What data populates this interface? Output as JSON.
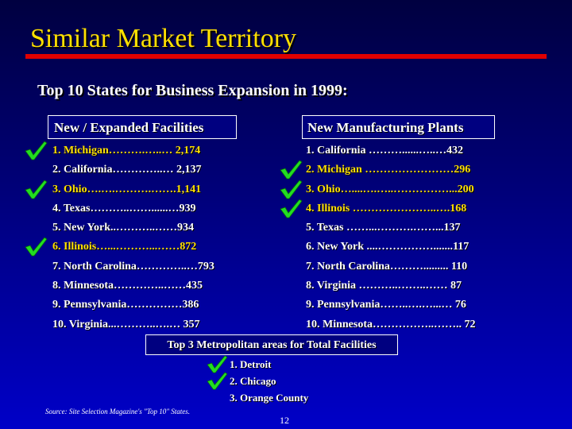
{
  "slide": {
    "title": "Similar Market Territory",
    "subtitle": "Top 10 States for Business Expansion in 1999:",
    "source": "Source: Site Selection Magazine's \"Top 10\" States.",
    "page_number": "12"
  },
  "left_list": {
    "header": "New / Expanded Facilities",
    "items": [
      {
        "text": "1.  Michigan……….…..… 2,174",
        "checked": true
      },
      {
        "text": "2.  California…………..… 2,137",
        "checked": false
      },
      {
        "text": "3.  Ohio….….……….…….1,141",
        "checked": true
      },
      {
        "text": "4.  Texas………..……......…939",
        "checked": false
      },
      {
        "text": "5.  New York..………..……934",
        "checked": false
      },
      {
        "text": "6.  Illinois…...………...……872",
        "checked": true
      },
      {
        "text": "7.  North Carolina…………..…793",
        "checked": false
      },
      {
        "text": "8.  Minnesota…………..……435",
        "checked": false
      },
      {
        "text": "9.  Pennsylvania……………386",
        "checked": false
      },
      {
        "text": "10. Virginia...………..….…  357",
        "checked": false
      }
    ]
  },
  "right_list": {
    "header": "New Manufacturing Plants",
    "items": [
      {
        "text": "1.  California ………......…..…432",
        "checked": false
      },
      {
        "text": "2.  Michigan ……………………296",
        "checked": true
      },
      {
        "text": "3.  Ohio…....….…..……………...200",
        "checked": true
      },
      {
        "text": "4.  Illinois …………………..….168",
        "checked": true
      },
      {
        "text": "5.  Texas ……...……….……...137",
        "checked": false
      },
      {
        "text": "6.  New York ....…………….......117",
        "checked": false
      },
      {
        "text": "7.  North Carolina……….........  110",
        "checked": false
      },
      {
        "text": "8.  Virginia ………..……..……  87",
        "checked": false
      },
      {
        "text": "9.  Pennsylvania……..….…...…  76",
        "checked": false
      },
      {
        "text": "10. Minnesota……………..……..  72",
        "checked": false
      }
    ]
  },
  "metro": {
    "header": "Top 3 Metropolitan areas for Total Facilities",
    "items": [
      {
        "text": "1. Detroit",
        "checked": true
      },
      {
        "text": "2. Chicago",
        "checked": true
      },
      {
        "text": "3. Orange County",
        "checked": false
      }
    ]
  },
  "colors": {
    "title": "#ffe000",
    "rule": "#e00000",
    "highlight": "#ffe000",
    "check": "#22dd22",
    "background_top": "#000040",
    "background_bottom": "#0000c8"
  },
  "icons": {
    "check": "check-mark-icon"
  }
}
